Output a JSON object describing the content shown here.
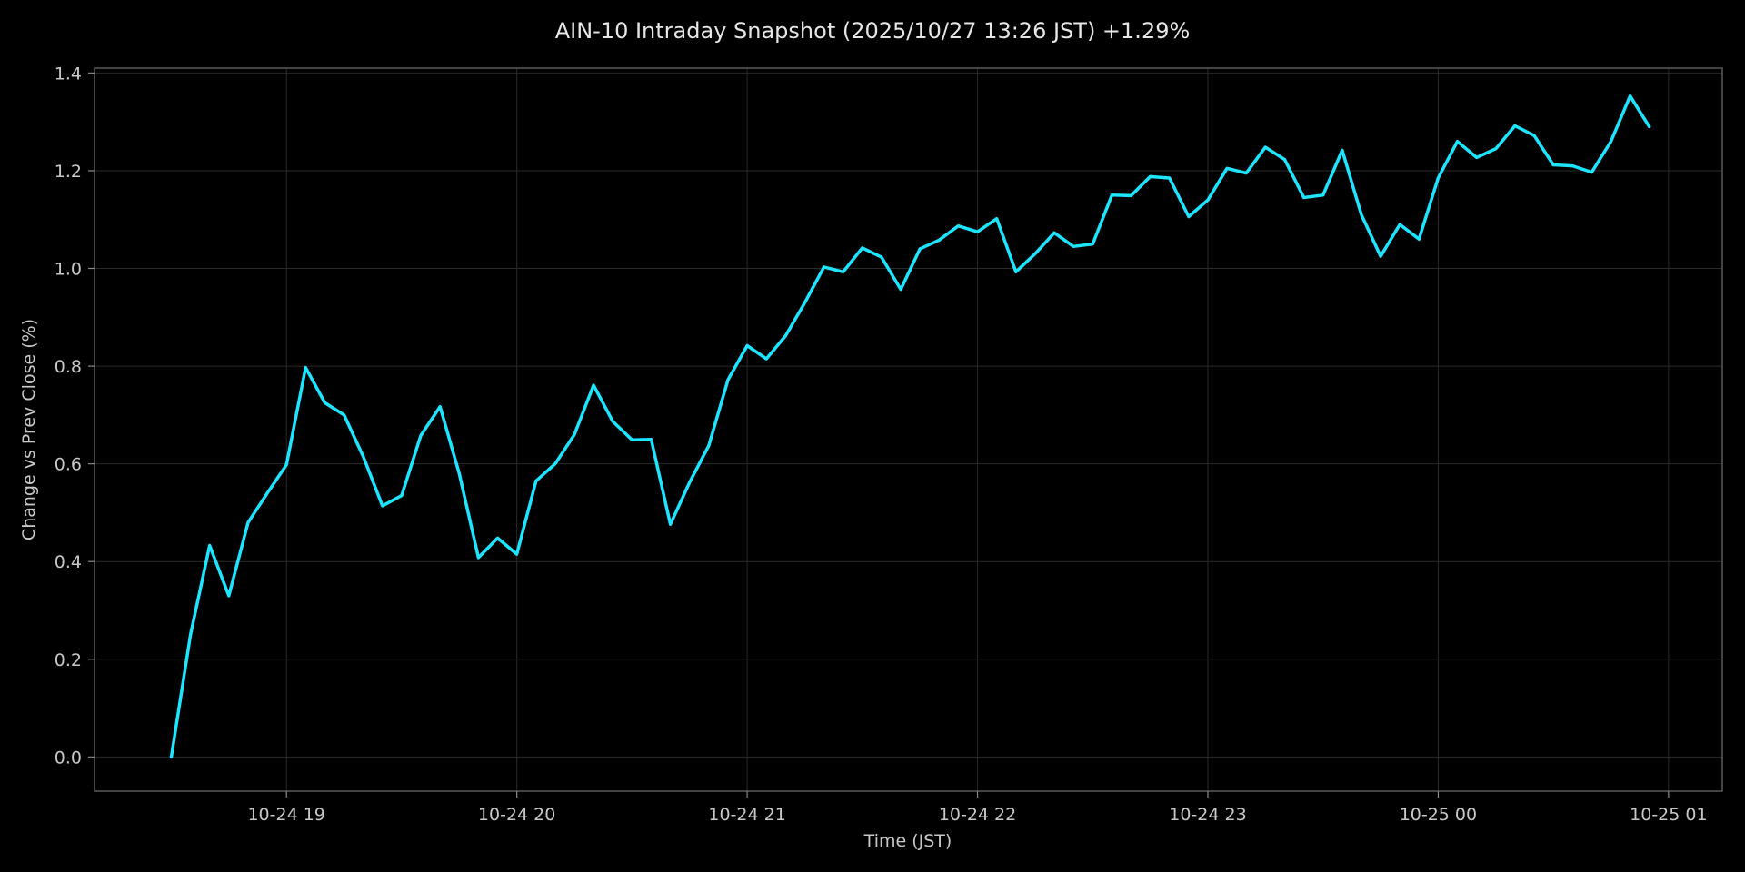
{
  "chart_data": {
    "type": "line",
    "title": "AIN-10 Intraday Snapshot (2025/10/27 13:26 JST)  +1.29%",
    "xlabel": "Time (JST)",
    "ylabel": "Change vs Prev Close (%)",
    "ylim": [
      -0.07,
      1.41
    ],
    "xlim": [
      "2025-10-24T18:10",
      "2025-10-25T01:14"
    ],
    "y_ticks": [
      0.0,
      0.2,
      0.4,
      0.6,
      0.8,
      1.0,
      1.2,
      1.4
    ],
    "y_tick_labels": [
      "0.0",
      "0.2",
      "0.4",
      "0.6",
      "0.8",
      "1.0",
      "1.2",
      "1.4"
    ],
    "x_ticks": [
      "2025-10-24T19:00",
      "2025-10-24T20:00",
      "2025-10-24T21:00",
      "2025-10-24T22:00",
      "2025-10-24T23:00",
      "2025-10-25T00:00",
      "2025-10-25T01:00"
    ],
    "x_tick_labels": [
      "10-24 19",
      "10-24 20",
      "10-24 21",
      "10-24 22",
      "10-24 23",
      "10-25 00",
      "10-25 01"
    ],
    "grid": true,
    "line_color": "#1de4ff",
    "background": "#000000",
    "series": [
      {
        "x": [
          "2025-10-24T18:30",
          "2025-10-24T18:35",
          "2025-10-24T18:40",
          "2025-10-24T18:45",
          "2025-10-24T18:50",
          "2025-10-24T18:55",
          "2025-10-24T19:00",
          "2025-10-24T19:05",
          "2025-10-24T19:10",
          "2025-10-24T19:15",
          "2025-10-24T19:20",
          "2025-10-24T19:25",
          "2025-10-24T19:30",
          "2025-10-24T19:35",
          "2025-10-24T19:40",
          "2025-10-24T19:45",
          "2025-10-24T19:50",
          "2025-10-24T19:55",
          "2025-10-24T20:00",
          "2025-10-24T20:05",
          "2025-10-24T20:10",
          "2025-10-24T20:15",
          "2025-10-24T20:20",
          "2025-10-24T20:25",
          "2025-10-24T20:30",
          "2025-10-24T20:35",
          "2025-10-24T20:40",
          "2025-10-24T20:45",
          "2025-10-24T20:50",
          "2025-10-24T20:55",
          "2025-10-24T21:00",
          "2025-10-24T21:05",
          "2025-10-24T21:10",
          "2025-10-24T21:15",
          "2025-10-24T21:20",
          "2025-10-24T21:25",
          "2025-10-24T21:30",
          "2025-10-24T21:35",
          "2025-10-24T21:40",
          "2025-10-24T21:45",
          "2025-10-24T21:50",
          "2025-10-24T21:55",
          "2025-10-24T22:00",
          "2025-10-24T22:05",
          "2025-10-24T22:10",
          "2025-10-24T22:15",
          "2025-10-24T22:20",
          "2025-10-24T22:25",
          "2025-10-24T22:30",
          "2025-10-24T22:35",
          "2025-10-24T22:40",
          "2025-10-24T22:45",
          "2025-10-24T22:50",
          "2025-10-24T22:55",
          "2025-10-24T23:00",
          "2025-10-24T23:05",
          "2025-10-24T23:10",
          "2025-10-24T23:15",
          "2025-10-24T23:20",
          "2025-10-24T23:25",
          "2025-10-24T23:30",
          "2025-10-24T23:35",
          "2025-10-24T23:40",
          "2025-10-24T23:45",
          "2025-10-24T23:50",
          "2025-10-24T23:55",
          "2025-10-25T00:00",
          "2025-10-25T00:05",
          "2025-10-25T00:10",
          "2025-10-25T00:15",
          "2025-10-25T00:20",
          "2025-10-25T00:25",
          "2025-10-25T00:30",
          "2025-10-25T00:35",
          "2025-10-25T00:40",
          "2025-10-25T00:45",
          "2025-10-25T00:50",
          "2025-10-25T00:55"
        ],
        "y": [
          0.0,
          0.25,
          0.433,
          0.33,
          0.48,
          0.54,
          0.598,
          0.797,
          0.725,
          0.7,
          0.615,
          0.514,
          0.535,
          0.658,
          0.717,
          0.58,
          0.408,
          0.448,
          0.415,
          0.565,
          0.6,
          0.66,
          0.761,
          0.687,
          0.649,
          0.65,
          0.476,
          0.562,
          0.637,
          0.772,
          0.842,
          0.815,
          0.862,
          0.93,
          1.003,
          0.993,
          1.042,
          1.023,
          0.957,
          1.04,
          1.058,
          1.087,
          1.075,
          1.102,
          0.993,
          1.03,
          1.073,
          1.045,
          1.05,
          1.15,
          1.149,
          1.188,
          1.185,
          1.106,
          1.14,
          1.205,
          1.195,
          1.248,
          1.223,
          1.145,
          1.15,
          1.242,
          1.11,
          1.025,
          1.09,
          1.06,
          1.185,
          1.26,
          1.227,
          1.245,
          1.292,
          1.272,
          1.212,
          1.21,
          1.197,
          1.26,
          1.353,
          1.29
        ]
      }
    ]
  }
}
